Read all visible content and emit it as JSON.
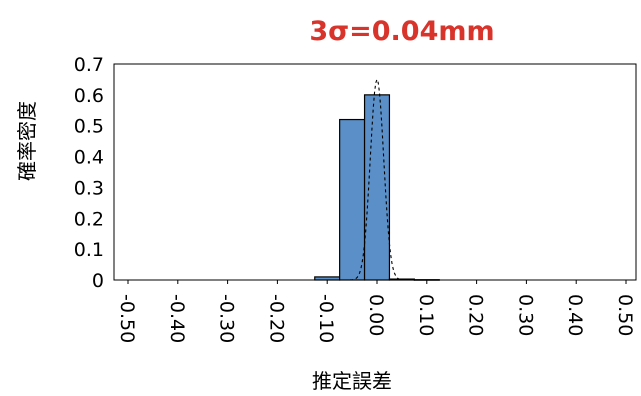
{
  "chart_data": {
    "type": "bar",
    "title": "3σ=0.04mm",
    "xlabel": "推定誤差",
    "ylabel": "確率密度",
    "ylim": [
      0,
      0.7
    ],
    "yticks": [
      "0",
      "0.1",
      "0.2",
      "0.3",
      "0.4",
      "0.5",
      "0.6",
      "0.7"
    ],
    "xticks": [
      "-0.50",
      "-0.40",
      "-0.30",
      "-0.20",
      "-0.10",
      "0.00",
      "0.10",
      "0.20",
      "0.30",
      "0.40",
      "0.50"
    ],
    "xlim": [
      -0.5,
      0.5
    ],
    "bin_width": 0.05,
    "bars": [
      {
        "x": -0.1,
        "value": 0.01
      },
      {
        "x": -0.05,
        "value": 0.52
      },
      {
        "x": 0.0,
        "value": 0.6
      },
      {
        "x": 0.05,
        "value": 0.003
      },
      {
        "x": 0.1,
        "value": 0.001
      }
    ],
    "fit_curve": {
      "style": "dashed",
      "mean": 0.0,
      "peak": 0.65
    },
    "grid": false,
    "legend": "none",
    "bar_color": "#5b8fc7",
    "title_color": "#d9342b"
  }
}
